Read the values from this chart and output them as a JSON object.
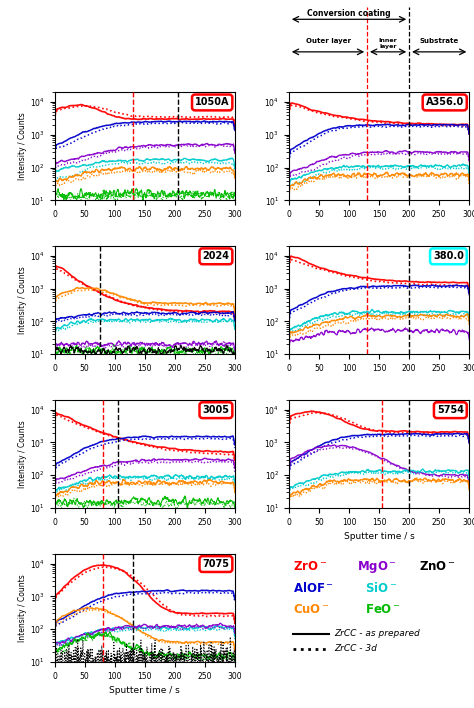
{
  "panels": [
    {
      "label": "1050A",
      "red_dline": 130,
      "black_dline": 205,
      "label_color": "red"
    },
    {
      "label": "A356.0",
      "red_dline": 130,
      "black_dline": 200,
      "label_color": "red",
      "top_annotation": true
    },
    {
      "label": "2024",
      "red_dline": null,
      "black_dline": 75,
      "label_color": "red"
    },
    {
      "label": "380.0",
      "red_dline": 130,
      "black_dline": 200,
      "label_color": "cyan"
    },
    {
      "label": "3005",
      "red_dline": 80,
      "black_dline": 105,
      "label_color": "red"
    },
    {
      "label": "5754",
      "red_dline": 155,
      "black_dline": 200,
      "label_color": "red"
    },
    {
      "label": "7075",
      "red_dline": 80,
      "black_dline": 130,
      "label_color": "red"
    }
  ],
  "xlim": [
    0,
    300
  ],
  "ylim_low": 10,
  "ylim_high": 20000,
  "xlabel": "Sputter time / s",
  "ylabel": "Intensity / Counts",
  "colors": {
    "ZrO": "#ff0000",
    "MgO": "#8800cc",
    "ZnO": "#000000",
    "AlOF": "#0000cc",
    "SiO": "#00cccc",
    "CuO": "#ff8800",
    "FeO": "#00bb00"
  }
}
